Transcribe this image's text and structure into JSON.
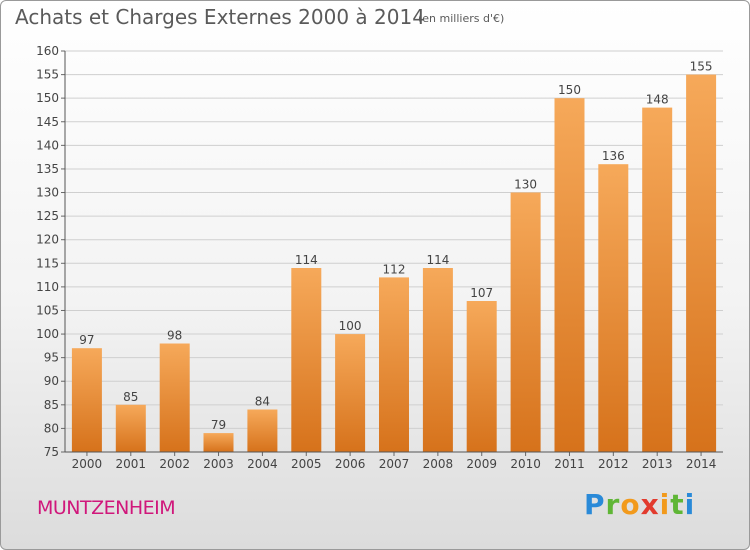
{
  "title": "Achats et Charges Externes 2000 à 2014",
  "subtitle": "(en milliers d'€)",
  "commune": "MUNTZENHEIM",
  "logo": {
    "letters": [
      "P",
      "r",
      "o",
      "x",
      "i",
      "t",
      "i"
    ],
    "colors": [
      "#2a8ad8",
      "#5fb636",
      "#f29a1c",
      "#e23b2e",
      "#f29a1c",
      "#5fb636",
      "#2a8ad8"
    ]
  },
  "colors": {
    "bar_light": "#f6a95a",
    "bar_dark": "#d6721b",
    "grid": "#cfcfcf",
    "axis_text": "#444444"
  },
  "chart_data": {
    "type": "bar",
    "categories": [
      "2000",
      "2001",
      "2002",
      "2003",
      "2004",
      "2005",
      "2006",
      "2007",
      "2008",
      "2009",
      "2010",
      "2011",
      "2012",
      "2013",
      "2014"
    ],
    "values": [
      97,
      85,
      98,
      79,
      84,
      114,
      100,
      112,
      114,
      107,
      130,
      150,
      136,
      148,
      155
    ],
    "ylim": [
      75,
      160
    ],
    "yticks": [
      75,
      80,
      85,
      90,
      95,
      100,
      105,
      110,
      115,
      120,
      125,
      130,
      135,
      140,
      145,
      150,
      155,
      160
    ],
    "grid": true
  }
}
